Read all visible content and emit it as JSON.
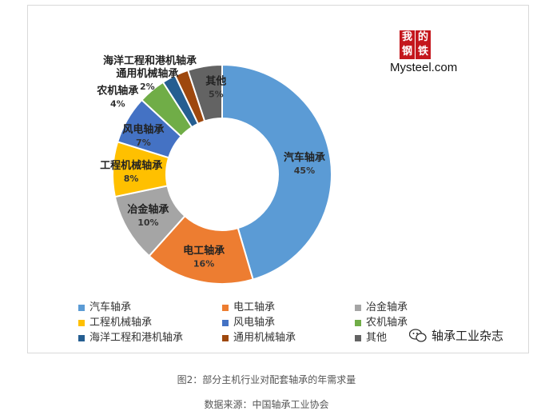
{
  "chart_data": {
    "type": "pie",
    "donut": true,
    "categories": [
      "汽车轴承",
      "电工轴承",
      "冶金轴承",
      "工程机械轴承",
      "风电轴承",
      "农机轴承",
      "海洋工程和港机轴承",
      "通用机械轴承",
      "其他"
    ],
    "values": [
      45,
      16,
      10,
      8,
      7,
      4,
      2,
      2,
      5
    ],
    "value_labels": [
      "45%",
      "16%",
      "10%",
      "8%",
      "7%",
      "4%",
      "",
      "2%",
      "5%"
    ],
    "colors": [
      "#5b9bd5",
      "#ed7d31",
      "#a5a5a5",
      "#ffc000",
      "#4472c4",
      "#70ad47",
      "#255e91",
      "#9e480e",
      "#636363"
    ],
    "legend_position": "bottom"
  },
  "logo": {
    "top": "我的",
    "bottom": "钢铁",
    "text": "Mysteel.com"
  },
  "watermark": {
    "text": "轴承工业杂志",
    "icon": "wechat-icon"
  },
  "caption": "图2：部分主机行业对配套轴承的年需求量",
  "source": "数据来源：中国轴承工业协会"
}
